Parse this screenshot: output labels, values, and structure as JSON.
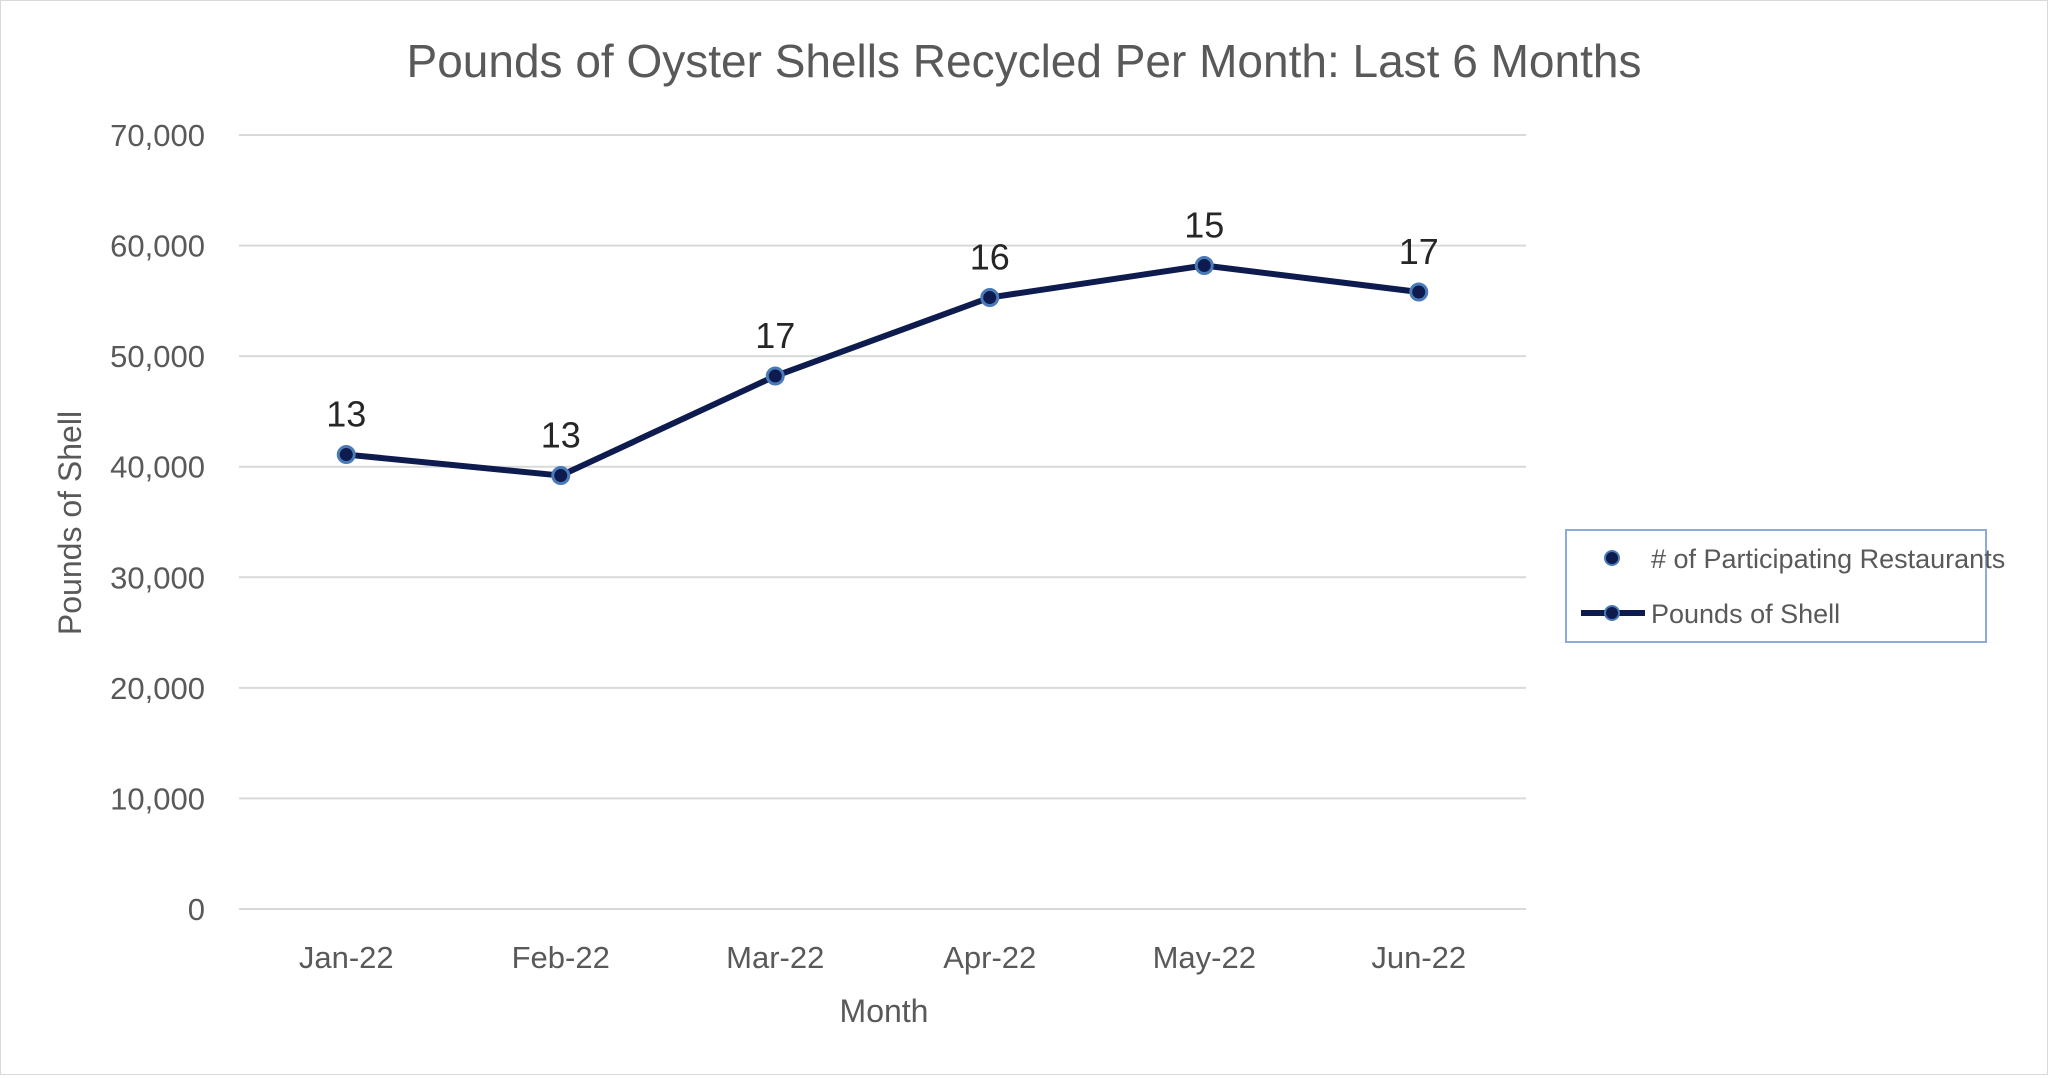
{
  "chart_data": {
    "type": "line",
    "title": "Pounds of Oyster Shells Recycled Per Month: Last 6 Months",
    "xlabel": "Month",
    "ylabel": "Pounds of Shell",
    "categories": [
      "Jan-22",
      "Feb-22",
      "Mar-22",
      "Apr-22",
      "May-22",
      "Jun-22"
    ],
    "ylim": [
      0,
      70000
    ],
    "yticks": [
      0,
      10000,
      20000,
      30000,
      40000,
      50000,
      60000,
      70000
    ],
    "ytick_labels": [
      "0",
      "10,000",
      "20,000",
      "30,000",
      "40,000",
      "50,000",
      "60,000",
      "70,000"
    ],
    "grid": true,
    "legend_position": "right",
    "series": [
      {
        "name": "Pounds of Shell",
        "values": [
          41100,
          39200,
          48200,
          55300,
          58200,
          55800
        ],
        "color": "#0d1b4f",
        "marker_fill": "#0d1b4f",
        "marker_edge": "#4a7ab8"
      }
    ],
    "data_labels": {
      "name": "# of Participating Restaurants",
      "values": [
        "13",
        "13",
        "17",
        "16",
        "15",
        "17"
      ]
    },
    "legend": [
      {
        "label": "# of Participating Restaurants",
        "kind": "marker"
      },
      {
        "label": "Pounds of Shell",
        "kind": "line-marker"
      }
    ]
  }
}
